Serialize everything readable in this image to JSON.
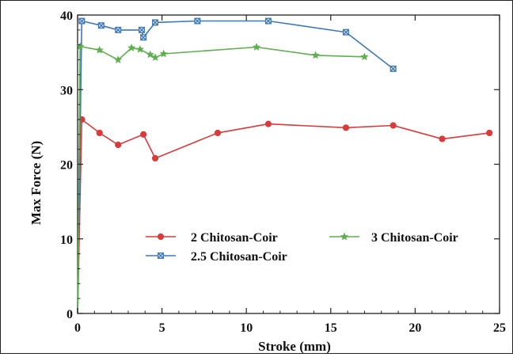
{
  "chart_data": {
    "type": "line",
    "xlabel": "Stroke  (mm)",
    "ylabel": "Max Force (N)",
    "xlim": [
      0,
      25
    ],
    "ylim": [
      0,
      40
    ],
    "xticks": [
      "0",
      "5",
      "10",
      "15",
      "20",
      "25"
    ],
    "yticks": [
      "0",
      "10",
      "20",
      "30",
      "40"
    ],
    "grid": false,
    "legend_position": "lower-middle",
    "series": [
      {
        "name": "2 Chitosan-Coir",
        "color": "#d93a3a",
        "marker": "circle",
        "x": [
          0.0,
          0.25,
          1.3,
          2.4,
          3.9,
          4.6,
          8.3,
          11.3,
          15.9,
          18.7,
          21.6,
          24.4
        ],
        "y": [
          0.0,
          26.0,
          24.2,
          22.6,
          24.0,
          20.8,
          24.2,
          25.4,
          24.9,
          25.2,
          23.4,
          24.2
        ]
      },
      {
        "name": "2.5 Chitosan-Coir",
        "color": "#3d78b8",
        "marker": "x",
        "x": [
          0.0,
          0.25,
          1.4,
          2.4,
          3.8,
          3.9,
          4.6,
          7.1,
          11.3,
          15.9,
          18.7
        ],
        "y": [
          0.0,
          39.2,
          38.6,
          38.0,
          38.0,
          37.0,
          39.0,
          39.2,
          39.2,
          37.7,
          32.8
        ]
      },
      {
        "name": "3 Chitosan-Coir",
        "color": "#5fae4f",
        "marker": "star",
        "x": [
          0.0,
          0.15,
          1.3,
          2.4,
          3.2,
          3.7,
          4.3,
          4.6,
          5.1,
          10.6,
          14.1,
          17.0
        ],
        "y": [
          0.0,
          35.8,
          35.3,
          34.0,
          35.6,
          35.4,
          34.7,
          34.3,
          34.8,
          35.7,
          34.6,
          34.4
        ]
      }
    ]
  }
}
